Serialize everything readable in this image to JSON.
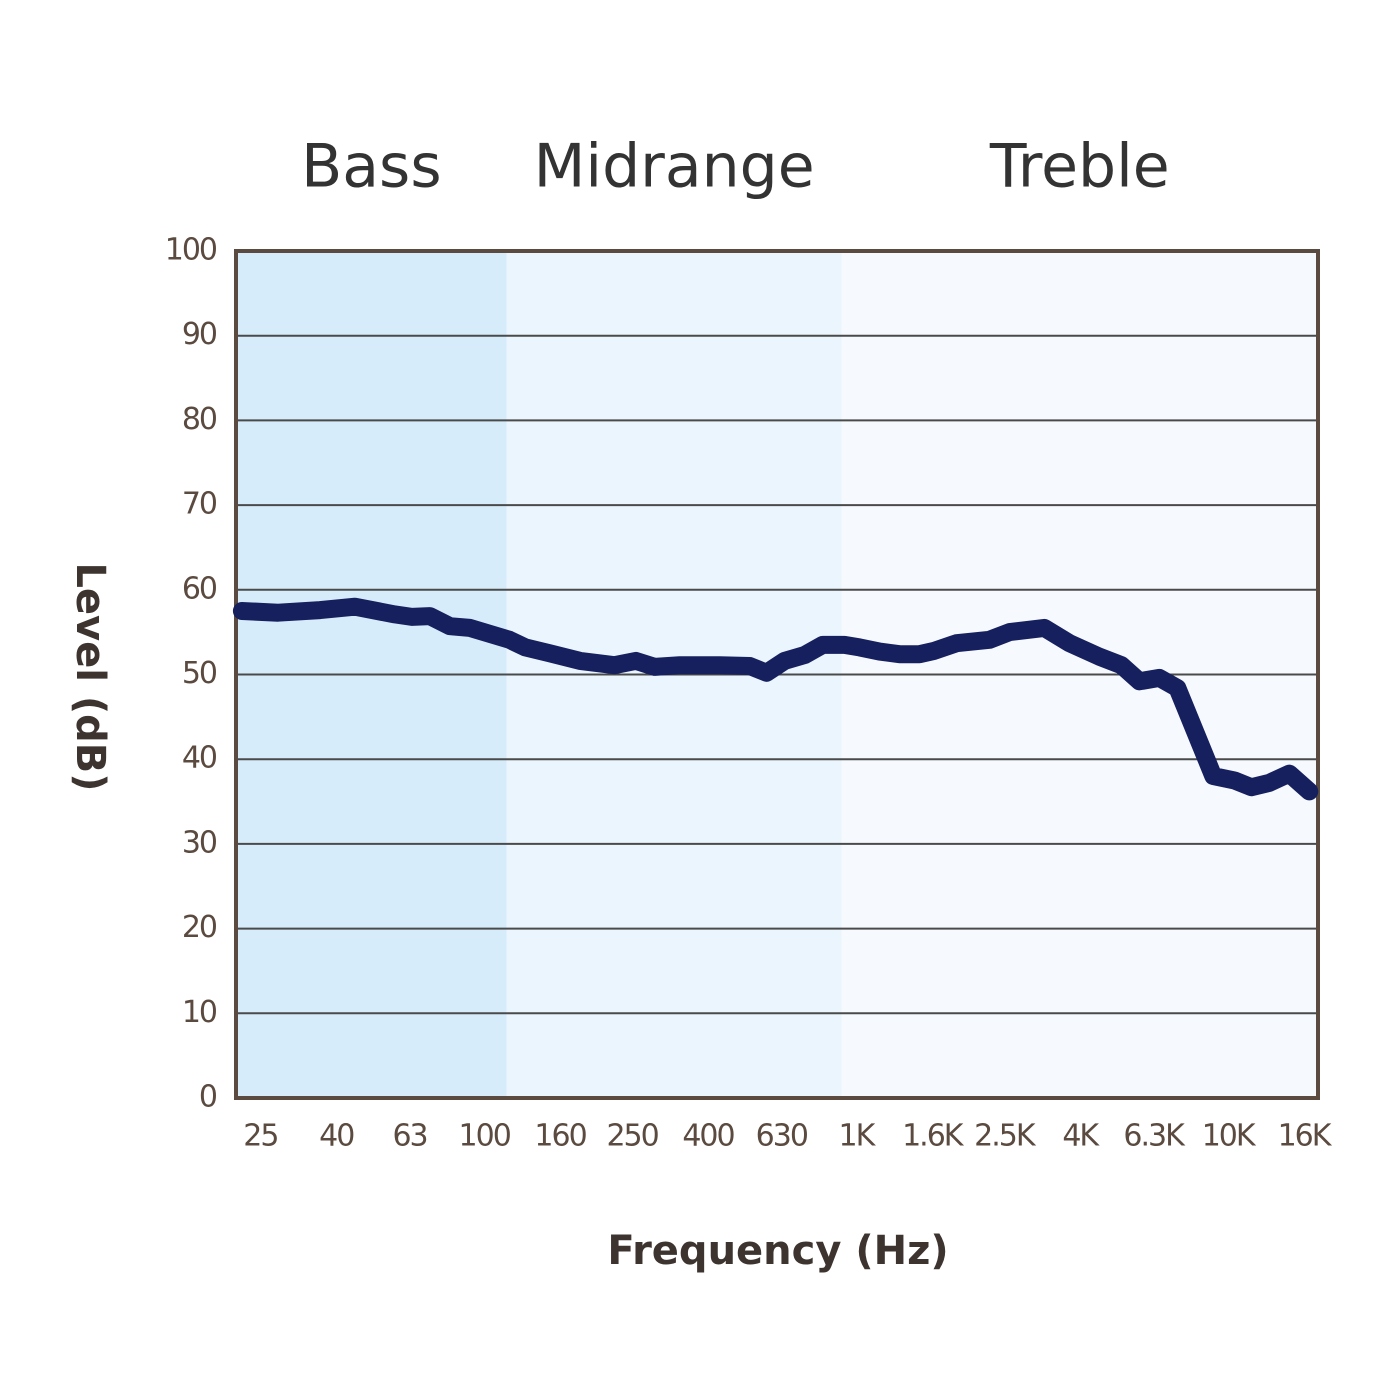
{
  "chart_data": {
    "type": "line",
    "xlabel": "Frequency (Hz)",
    "ylabel": "Level (dB)",
    "xscale": "log",
    "xlim": [
      21.5,
      17500
    ],
    "ylim": [
      0,
      100
    ],
    "xticks": [
      25,
      40,
      63,
      100,
      160,
      250,
      400,
      630,
      {
        "value": 1000,
        "label": "1K"
      },
      {
        "value": 1600,
        "label": "1.6K"
      },
      {
        "value": 2500,
        "label": "2.5K"
      },
      {
        "value": 4000,
        "label": "4K"
      },
      {
        "value": 6300,
        "label": "6.3K"
      },
      {
        "value": 10000,
        "label": "10K"
      },
      {
        "value": 16000,
        "label": "16K"
      }
    ],
    "yticks": [
      0,
      10,
      20,
      30,
      40,
      50,
      60,
      70,
      80,
      90,
      100
    ],
    "grid": true,
    "bands": [
      {
        "name": "Bass",
        "from": 21.5,
        "to": 115,
        "color": "#d7ecfb"
      },
      {
        "name": "Midrange",
        "from": 115,
        "to": 915,
        "color": "#eaf5fd"
      },
      {
        "name": "Treble",
        "from": 915,
        "to": 17500,
        "color": "#f6fafe"
      }
    ],
    "x": [
      22.3,
      27.9,
      36.2,
      44.9,
      57.5,
      63.9,
      71.4,
      80.9,
      91.5,
      117,
      129,
      150,
      181,
      224,
      256,
      288,
      336,
      430,
      518,
      575,
      643,
      728,
      814,
      932,
      1023,
      1158,
      1310,
      1483,
      1627,
      1865,
      2288,
      2589,
      3214,
      3754,
      4519,
      5177,
      5788,
      6551,
      7325,
      9150,
      10420,
      11580,
      12940,
      14650,
      16580
    ],
    "series": [
      {
        "color": "#17205e",
        "values": [
          57.5,
          57.3,
          57.6,
          58.0,
          57.1,
          56.8,
          56.9,
          55.7,
          55.5,
          54.1,
          53.2,
          52.5,
          51.6,
          51.1,
          51.6,
          50.9,
          51.1,
          51.1,
          51.0,
          50.2,
          51.6,
          52.3,
          53.5,
          53.5,
          53.2,
          52.7,
          52.4,
          52.4,
          52.8,
          53.7,
          54.1,
          55.0,
          55.5,
          53.7,
          52.1,
          51.1,
          49.2,
          49.6,
          48.4,
          38.0,
          37.5,
          36.7,
          37.2,
          38.3,
          36.2
        ]
      }
    ]
  }
}
